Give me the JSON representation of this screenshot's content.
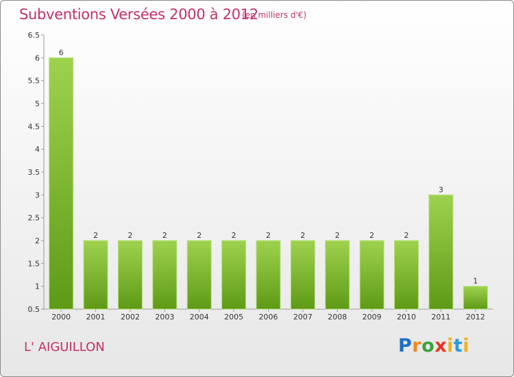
{
  "header": {
    "title": "Subventions Versées 2000 à 2012",
    "unit": "(en milliers d'€)"
  },
  "footer": {
    "commune": "L' AIGUILLON",
    "brand": "Proxiti"
  },
  "colors": {
    "title": "#c0306a",
    "bar_top": "#9ed24e",
    "bar_bottom": "#5e9a16"
  },
  "chart_data": {
    "type": "bar",
    "categories": [
      "2000",
      "2001",
      "2002",
      "2003",
      "2004",
      "2005",
      "2006",
      "2007",
      "2008",
      "2009",
      "2010",
      "2011",
      "2012"
    ],
    "values": [
      6,
      2,
      2,
      2,
      2,
      2,
      2,
      2,
      2,
      2,
      2,
      3,
      1
    ],
    "title": "Subventions Versées 2000 à 2012",
    "subtitle": "(en milliers d'€)",
    "ylim": [
      0.5,
      6.5
    ],
    "yticks": [
      "0.5",
      "1",
      "1.5",
      "2",
      "2.5",
      "3",
      "3.5",
      "4",
      "4.5",
      "5",
      "5.5",
      "6",
      "6.5"
    ],
    "grid": false,
    "legend": "none"
  }
}
